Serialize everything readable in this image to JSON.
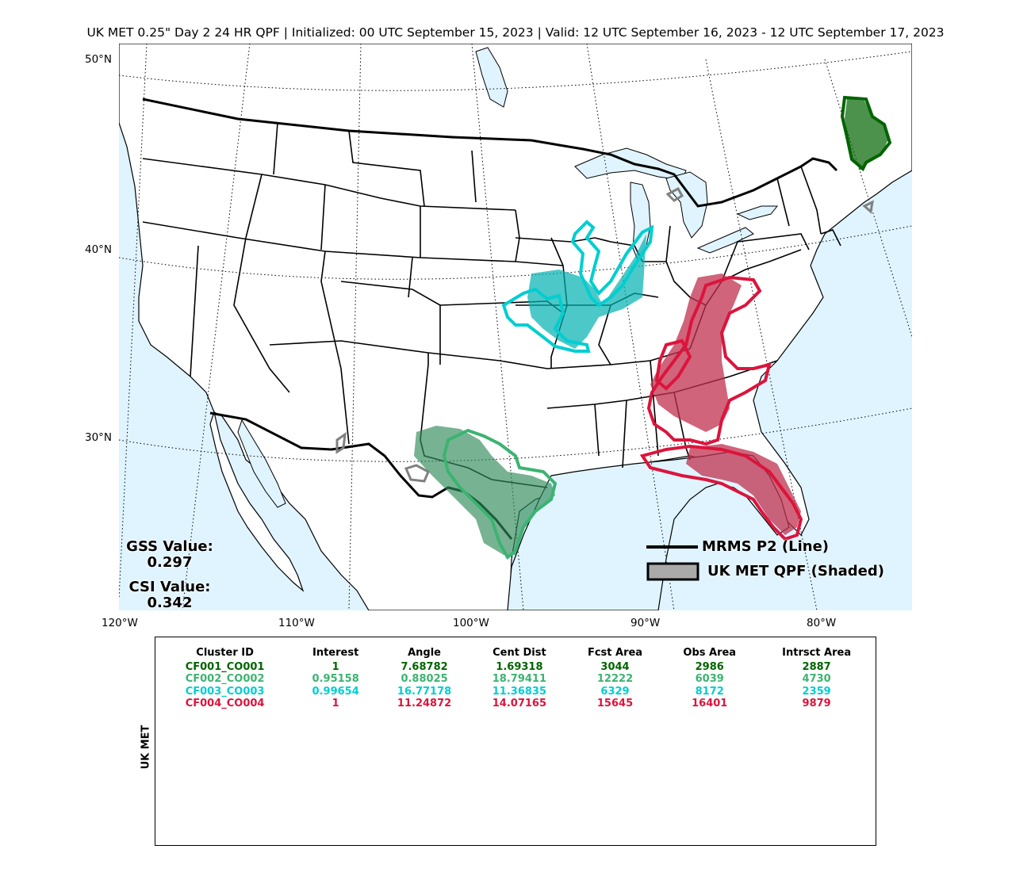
{
  "title": "UK MET 0.25\" Day 2 24 HR QPF | Initialized: 00 UTC September 15, 2023 | Valid: 12 UTC September 16, 2023 - 12 UTC September 17, 2023",
  "map": {
    "lat_labels": [
      "50°N",
      "40°N",
      "30°N"
    ],
    "lon_labels": [
      "120°W",
      "110°W",
      "100°W",
      "90°W",
      "80°W"
    ],
    "water_color": "#dff4ff",
    "land_color": "#ffffff"
  },
  "scores": {
    "gss_label": "GSS Value:",
    "gss_value": "0.297",
    "csi_label": "CSI Value:",
    "csi_value": "0.342"
  },
  "legend": {
    "line_label": "MRMS P2 (Line)",
    "shaded_label": "UK MET QPF (Shaded)"
  },
  "table": {
    "side_label": "UK MET",
    "headers": [
      "Cluster ID",
      "Interest",
      "Angle",
      "Cent Dist",
      "Fcst Area",
      "Obs Area",
      "Intrsct Area"
    ],
    "rows": [
      {
        "color": "#006400",
        "cells": [
          "CF001_CO001",
          "1",
          "7.68782",
          "1.69318",
          "3044",
          "2986",
          "2887"
        ]
      },
      {
        "color": "#3cb371",
        "cells": [
          "CF002_CO002",
          "0.95158",
          "0.88025",
          "18.79411",
          "12222",
          "6039",
          "4730"
        ]
      },
      {
        "color": "#00ced1",
        "cells": [
          "CF003_CO003",
          "0.99654",
          "16.77178",
          "11.36835",
          "6329",
          "8172",
          "2359"
        ]
      },
      {
        "color": "#dc143c",
        "cells": [
          "CF004_CO004",
          "1",
          "11.24872",
          "14.07165",
          "15645",
          "16401",
          "9879"
        ]
      }
    ]
  }
}
